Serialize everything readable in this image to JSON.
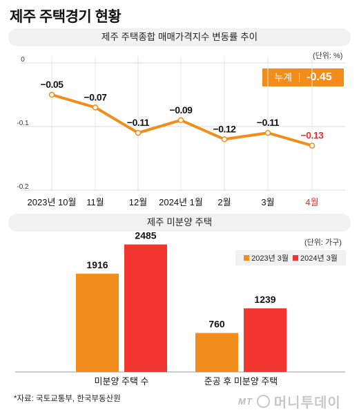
{
  "title": "제주 주택경기 현황",
  "line_section": {
    "title": "제주 주택종합 매매가격지수 변동률 추이",
    "unit": "(단위: %)"
  },
  "cumulative": {
    "label": "누계",
    "value": "-0.45"
  },
  "bar_section": {
    "title": "제주 미분양 주택",
    "unit": "(단위: 가구)"
  },
  "source": "*자료: 국토교통부, 한국부동산원",
  "logo": {
    "mt": "MT",
    "name": "머니투데이"
  },
  "colors": {
    "orange": "#f28c1a",
    "red": "#f0362e",
    "grid": "#dddddd"
  },
  "chart_data": [
    {
      "type": "line",
      "categories": [
        "2023년 10월",
        "11월",
        "12월",
        "2024년 1월",
        "2월",
        "3월",
        "4월"
      ],
      "values": [
        -0.05,
        -0.07,
        -0.11,
        -0.09,
        -0.12,
        -0.11,
        -0.13
      ],
      "labels": [
        "-0.05",
        "-0.07",
        "-0.11",
        "-0.09",
        "-0.12",
        "-0.11",
        "-0.13"
      ],
      "ylim": [
        -0.2,
        0
      ],
      "yticks": [
        "0",
        "-0.1",
        "-0.2"
      ],
      "grid": true
    },
    {
      "type": "bar",
      "categories": [
        "미분양 주택 수",
        "준공 후 미분양 주택"
      ],
      "series": [
        {
          "name": "2023년 3월",
          "values": [
            1916,
            760
          ],
          "labels": [
            "1916",
            "760"
          ]
        },
        {
          "name": "2024년 3월",
          "values": [
            2485,
            1239
          ],
          "labels": [
            "2485",
            "1239"
          ]
        }
      ],
      "legend": "top-right"
    }
  ]
}
